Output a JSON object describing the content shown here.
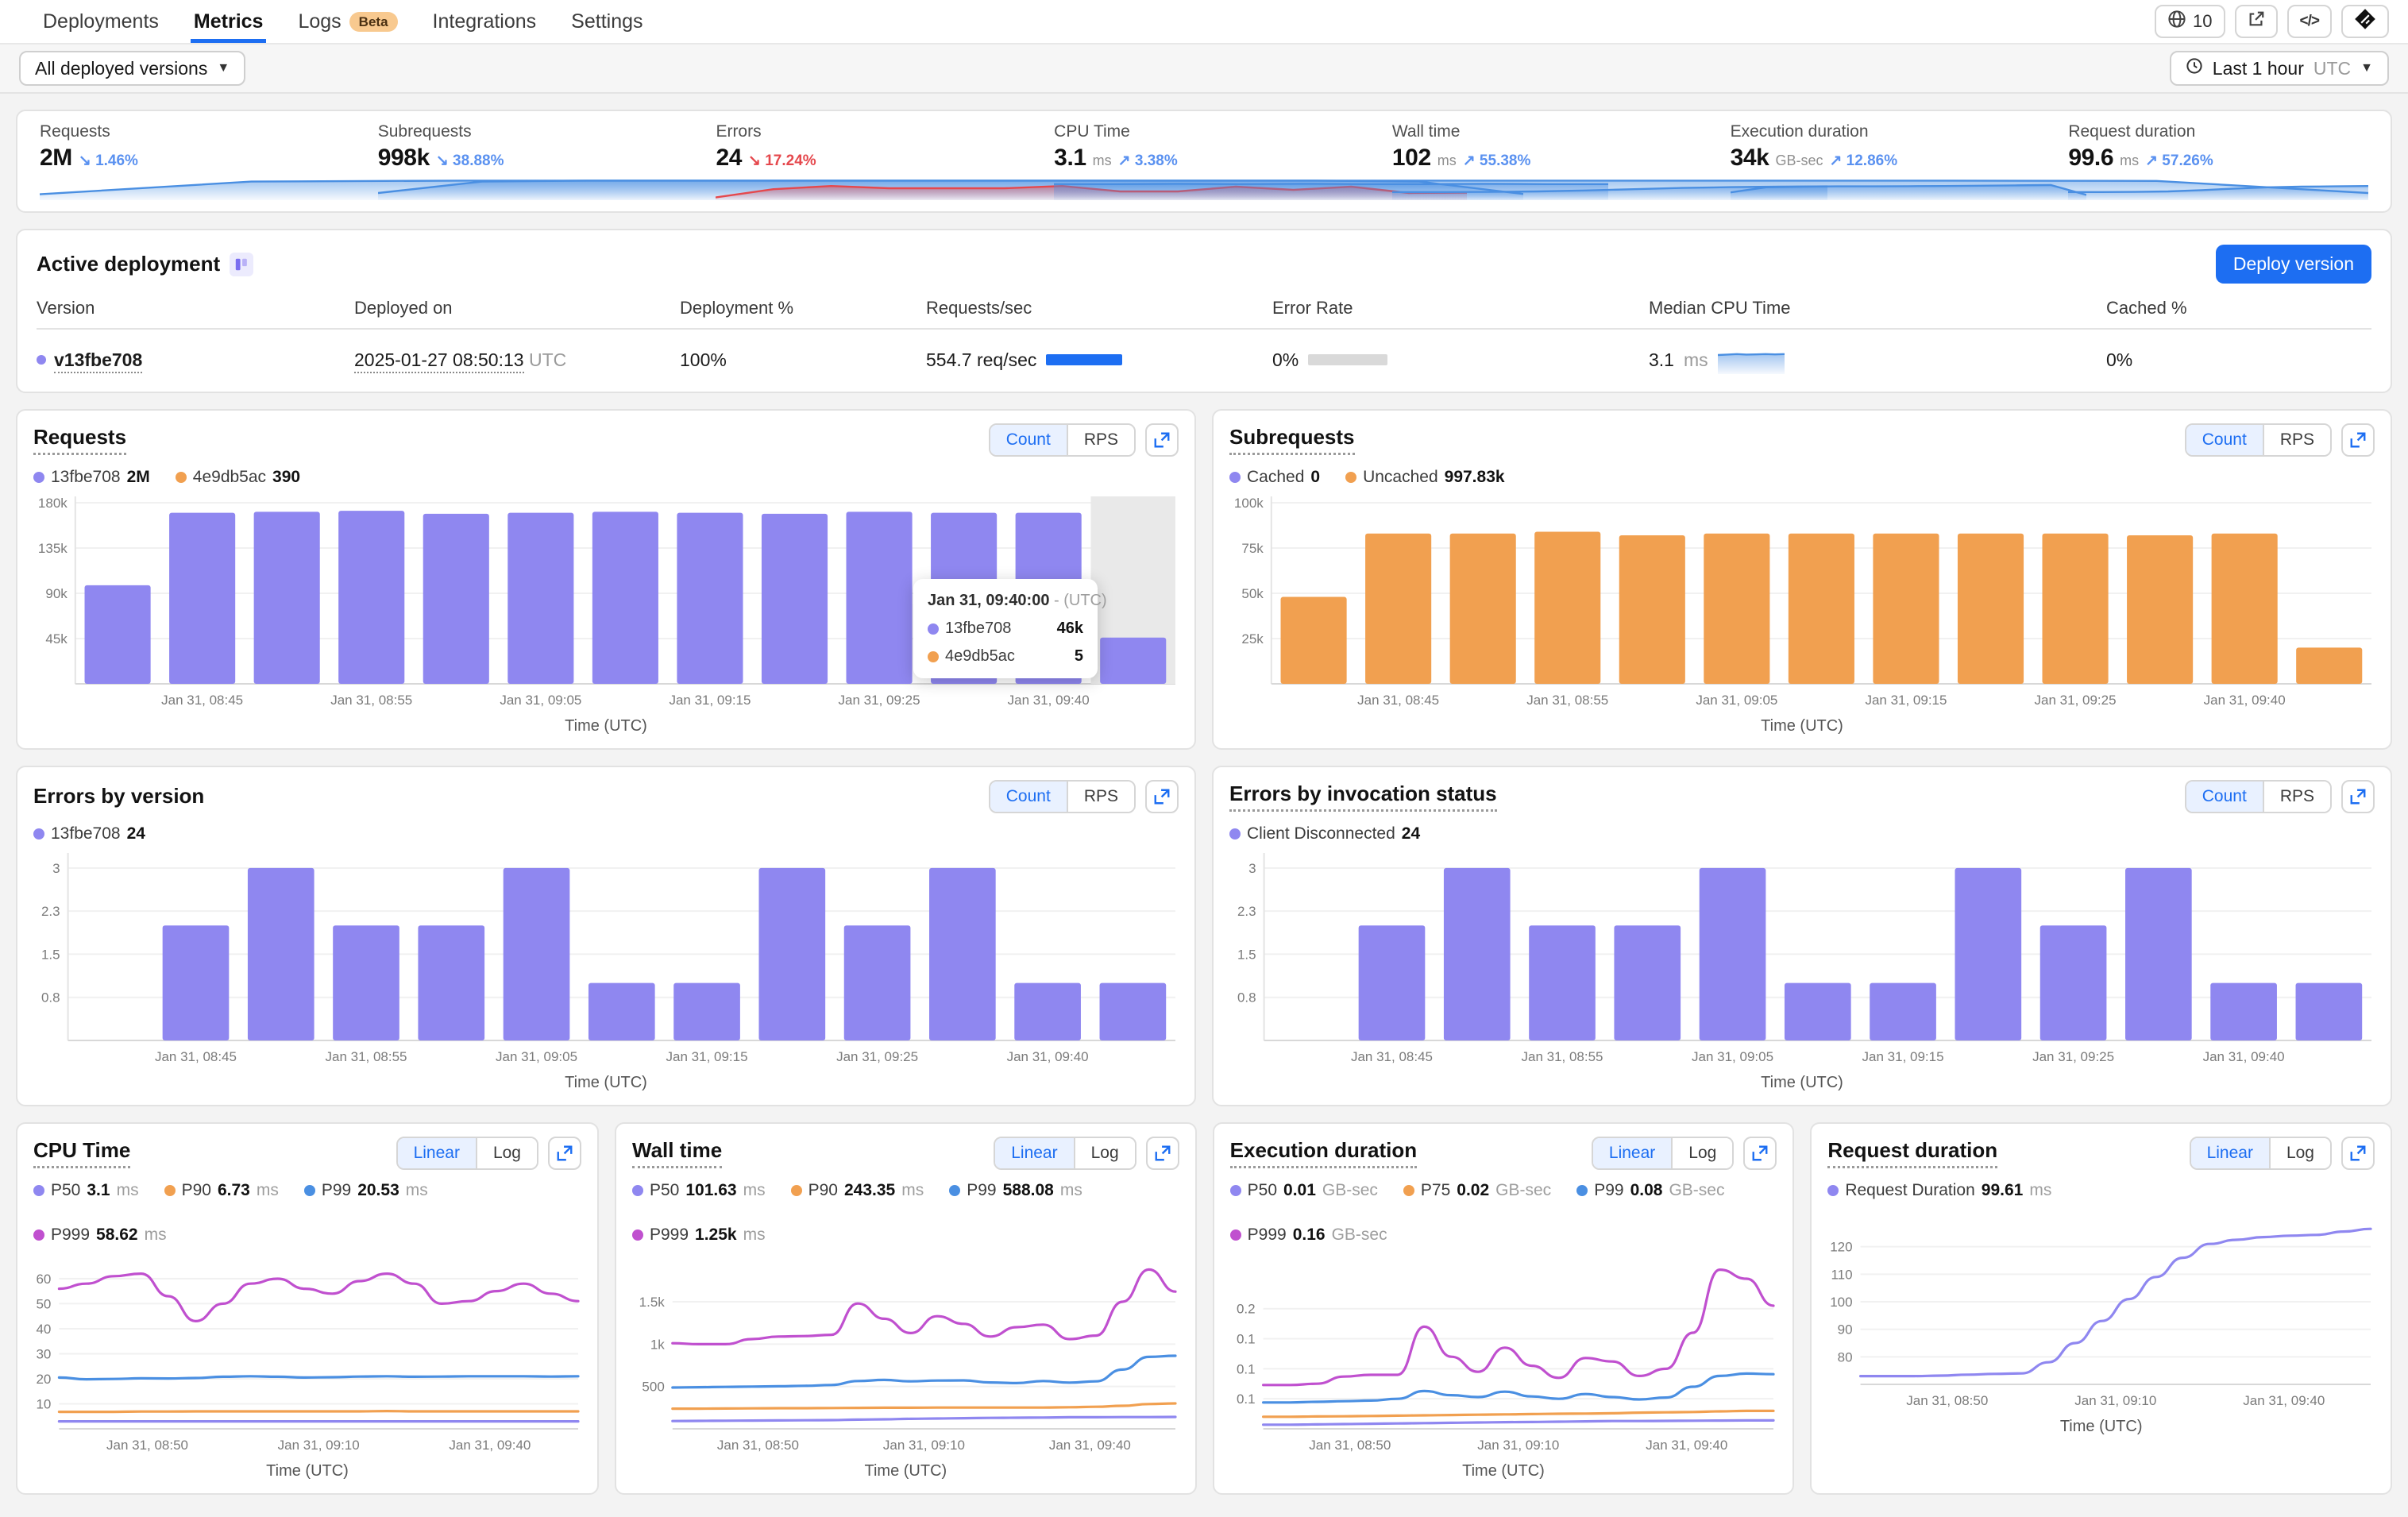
{
  "nav": {
    "tabs": [
      {
        "label": "Deployments",
        "active": false
      },
      {
        "label": "Metrics",
        "active": true
      },
      {
        "label": "Logs",
        "active": false,
        "badge": "Beta"
      },
      {
        "label": "Integrations",
        "active": false
      },
      {
        "label": "Settings",
        "active": false
      }
    ],
    "routes_count": "10"
  },
  "filters": {
    "versions_label": "All deployed versions",
    "time_range": "Last 1 hour",
    "time_zone": "UTC"
  },
  "theme": {
    "accent_blue": "#1d6ef2",
    "purple": "#8f87f0",
    "orange": "#f1a050",
    "line_blue": "#4a8fe2",
    "magenta": "#c050cf",
    "red": "#e5484d"
  },
  "stats": [
    {
      "label": "Requests",
      "value": "2M",
      "unit": "",
      "delta": "1.46%",
      "direction": "down",
      "tone": "blue",
      "spark_color": "#4a8fe2",
      "spark": [
        0.18,
        0.85,
        0.9,
        0.9,
        0.9,
        0.9,
        0.9,
        0.9,
        0.9,
        0.9,
        0.88,
        0.25
      ]
    },
    {
      "label": "Subrequests",
      "value": "998k",
      "unit": "",
      "delta": "38.88%",
      "direction": "down",
      "tone": "blue",
      "spark_color": "#4a8fe2",
      "spark": [
        0.25,
        0.85,
        0.9,
        0.9,
        0.9,
        0.9,
        0.9,
        0.9,
        0.9,
        0.9,
        0.85,
        0.2
      ]
    },
    {
      "label": "Errors",
      "value": "24",
      "unit": "",
      "delta": "17.24%",
      "direction": "down",
      "tone": "red",
      "spark_color": "#e5484d",
      "spark": [
        0.02,
        0.45,
        0.62,
        0.5,
        0.5,
        0.5,
        0.62,
        0.33,
        0.33,
        0.58,
        0.42,
        0.58,
        0.25,
        0.27
      ]
    },
    {
      "label": "CPU Time",
      "value": "3.1",
      "unit": "ms",
      "delta": "3.38%",
      "direction": "up",
      "tone": "blue",
      "spark_color": "#4a8fe2",
      "spark": [
        0.72,
        0.72,
        0.73,
        0.72,
        0.73,
        0.72,
        0.72,
        0.73,
        0.72,
        0.72
      ]
    },
    {
      "label": "Wall time",
      "value": "102",
      "unit": "ms",
      "delta": "55.38%",
      "direction": "up",
      "tone": "blue",
      "spark_color": "#4a8fe2",
      "spark": [
        0.3,
        0.3,
        0.31,
        0.33,
        0.38,
        0.45,
        0.52,
        0.56,
        0.58,
        0.6
      ]
    },
    {
      "label": "Execution duration",
      "value": "34k",
      "unit": "GB-sec",
      "delta": "12.86%",
      "direction": "up",
      "tone": "blue",
      "spark_color": "#4a8fe2",
      "spark": [
        0.28,
        0.55,
        0.58,
        0.6,
        0.6,
        0.61,
        0.62,
        0.63,
        0.65,
        0.67,
        0.15
      ]
    },
    {
      "label": "Request duration",
      "value": "99.6",
      "unit": "ms",
      "delta": "57.26%",
      "direction": "up",
      "tone": "blue",
      "spark_color": "#4a8fe2",
      "spark": [
        0.3,
        0.3,
        0.31,
        0.33,
        0.4,
        0.48,
        0.55,
        0.58,
        0.6,
        0.62
      ]
    }
  ],
  "deployment": {
    "title": "Active deployment",
    "deploy_button": "Deploy version",
    "columns": [
      "Version",
      "Deployed on",
      "Deployment %",
      "Requests/sec",
      "Error Rate",
      "Median CPU Time",
      "Cached %"
    ],
    "row": {
      "version": "v13fbe708",
      "deployed_on": "2025-01-27 08:50:13",
      "deployed_tz": "UTC",
      "deployment_pct": "100%",
      "rps": "554.7 req/sec",
      "error_rate": "0%",
      "median_cpu": "3.1",
      "median_cpu_unit": "ms",
      "cached_pct": "0%",
      "cpu_spark": {
        "points": [
          0.7,
          0.72,
          0.74,
          0.72,
          0.73,
          0.74,
          0.73,
          0.74
        ],
        "color": "#4a8fe2"
      }
    }
  },
  "charts": {
    "requests": {
      "title": "Requests",
      "type": "bar",
      "color": "#8f87f0",
      "toggle": [
        "Count",
        "RPS"
      ],
      "selected": "Count",
      "legend": [
        {
          "label": "13fbe708",
          "value": "2M",
          "color": "#8f87f0"
        },
        {
          "label": "4e9db5ac",
          "value": "390",
          "color": "#f1a050"
        }
      ],
      "values": [
        98,
        170,
        171,
        172,
        169,
        170,
        171,
        170,
        169,
        171,
        170,
        170,
        46
      ],
      "ymax": 180,
      "yticks": [
        {
          "label": "180k",
          "v": 180
        },
        {
          "label": "135k",
          "v": 135
        },
        {
          "label": "90k",
          "v": 90
        },
        {
          "label": "45k",
          "v": 45
        }
      ],
      "xlabels": [
        "Jan 31, 08:45",
        "Jan 31, 08:55",
        "Jan 31, 09:05",
        "Jan 31, 09:15",
        "Jan 31, 09:25",
        "Jan 31, 09:40"
      ],
      "label_slots": [
        1,
        3,
        5,
        7,
        9,
        11
      ],
      "xlabel": "Time (UTC)",
      "hover_slot": 12,
      "tooltip": {
        "time": "Jan 31, 09:40:00",
        "suffix": "- (UTC)",
        "rows": [
          {
            "label": "13fbe708",
            "value": "46k",
            "color": "#8f87f0"
          },
          {
            "label": "4e9db5ac",
            "value": "5",
            "color": "#f1a050"
          }
        ]
      }
    },
    "subrequests": {
      "title": "Subrequests",
      "type": "bar",
      "color": "#f1a050",
      "toggle": [
        "Count",
        "RPS"
      ],
      "selected": "Count",
      "legend": [
        {
          "label": "Cached",
          "value": "0",
          "color": "#8f87f0"
        },
        {
          "label": "Uncached",
          "value": "997.83k",
          "color": "#f1a050"
        }
      ],
      "values": [
        48,
        83,
        83,
        84,
        82,
        83,
        83,
        83,
        83,
        83,
        82,
        83,
        20
      ],
      "ymax": 100,
      "yticks": [
        {
          "label": "100k",
          "v": 100
        },
        {
          "label": "75k",
          "v": 75
        },
        {
          "label": "50k",
          "v": 50
        },
        {
          "label": "25k",
          "v": 25
        }
      ],
      "xlabels": [
        "Jan 31, 08:45",
        "Jan 31, 08:55",
        "Jan 31, 09:05",
        "Jan 31, 09:15",
        "Jan 31, 09:25",
        "Jan 31, 09:40"
      ],
      "label_slots": [
        1,
        3,
        5,
        7,
        9,
        11
      ],
      "xlabel": "Time (UTC)"
    },
    "errors_version": {
      "title": "Errors by version",
      "type": "bar",
      "color": "#8f87f0",
      "toggle": [
        "Count",
        "RPS"
      ],
      "selected": "Count",
      "legend": [
        {
          "label": "13fbe708",
          "value": "24",
          "color": "#8f87f0"
        }
      ],
      "values": [
        0,
        2,
        3,
        2,
        2,
        3,
        1,
        1,
        3,
        2,
        3,
        1,
        1
      ],
      "ymax": 3.15,
      "yticks": [
        {
          "label": "3",
          "v": 3
        },
        {
          "label": "2.3",
          "v": 2.25
        },
        {
          "label": "1.5",
          "v": 1.5
        },
        {
          "label": "0.8",
          "v": 0.75
        }
      ],
      "xlabels": [
        "Jan 31, 08:45",
        "Jan 31, 08:55",
        "Jan 31, 09:05",
        "Jan 31, 09:15",
        "Jan 31, 09:25",
        "Jan 31, 09:40"
      ],
      "label_slots": [
        1,
        3,
        5,
        7,
        9,
        11
      ],
      "xlabel": "Time (UTC)"
    },
    "errors_status": {
      "title": "Errors by invocation status",
      "type": "bar",
      "color": "#8f87f0",
      "toggle": [
        "Count",
        "RPS"
      ],
      "selected": "Count",
      "legend": [
        {
          "label": "Client Disconnected",
          "value": "24",
          "color": "#8f87f0"
        }
      ],
      "values": [
        0,
        2,
        3,
        2,
        2,
        3,
        1,
        1,
        3,
        2,
        3,
        1,
        1
      ],
      "ymax": 3.15,
      "yticks": [
        {
          "label": "3",
          "v": 3
        },
        {
          "label": "2.3",
          "v": 2.25
        },
        {
          "label": "1.5",
          "v": 1.5
        },
        {
          "label": "0.8",
          "v": 0.75
        }
      ],
      "xlabels": [
        "Jan 31, 08:45",
        "Jan 31, 08:55",
        "Jan 31, 09:05",
        "Jan 31, 09:15",
        "Jan 31, 09:25",
        "Jan 31, 09:40"
      ],
      "label_slots": [
        1,
        3,
        5,
        7,
        9,
        11
      ],
      "xlabel": "Time (UTC)"
    },
    "cpu": {
      "title": "CPU Time",
      "type": "line",
      "toggle": [
        "Linear",
        "Log"
      ],
      "selected": "Linear",
      "legend": [
        {
          "label": "P50",
          "value": "3.1",
          "unit": "ms",
          "color": "#8f87f0"
        },
        {
          "label": "P90",
          "value": "6.73",
          "unit": "ms",
          "color": "#f1a050"
        },
        {
          "label": "P99",
          "value": "20.53",
          "unit": "ms",
          "color": "#4a8fe2"
        },
        {
          "label": "P999",
          "value": "58.62",
          "unit": "ms",
          "color": "#c050cf"
        }
      ],
      "ymin": 0,
      "ymax": 66,
      "yticks": [
        {
          "label": "60",
          "v": 60
        },
        {
          "label": "50",
          "v": 50
        },
        {
          "label": "40",
          "v": 40
        },
        {
          "label": "30",
          "v": 30
        },
        {
          "label": "20",
          "v": 20
        },
        {
          "label": "10",
          "v": 10
        }
      ],
      "xlabels": [
        "Jan 31, 08:50",
        "Jan 31, 09:10",
        "Jan 31, 09:40"
      ],
      "xfracs": [
        0.17,
        0.5,
        0.83
      ],
      "xlabel": "Time (UTC)",
      "series": [
        {
          "name": "P50",
          "color": "#8f87f0",
          "points": [
            3,
            3,
            3,
            3,
            3,
            3,
            3,
            3,
            3,
            3,
            3,
            3,
            3,
            3,
            3,
            3,
            3,
            3,
            3,
            3
          ]
        },
        {
          "name": "P90",
          "color": "#f1a050",
          "points": [
            6.8,
            6.8,
            6.8,
            6.9,
            6.9,
            7,
            7,
            7,
            7,
            7,
            7,
            7,
            7.1,
            7,
            7,
            7,
            7,
            7,
            7,
            7
          ]
        },
        {
          "name": "P99",
          "color": "#4a8fe2",
          "points": [
            20.5,
            19.8,
            19.9,
            20.2,
            20.1,
            20.3,
            20.8,
            21,
            20.8,
            20.5,
            20.6,
            20.9,
            21,
            20.8,
            20.9,
            21,
            21,
            21,
            20.9,
            21
          ]
        },
        {
          "name": "P999",
          "color": "#c050cf",
          "points": [
            56,
            58,
            61,
            62,
            53,
            43,
            50,
            58,
            60,
            56,
            54,
            59,
            62,
            58,
            50,
            51,
            55,
            58,
            54,
            51
          ]
        }
      ]
    },
    "wall": {
      "title": "Wall time",
      "type": "line",
      "toggle": [
        "Linear",
        "Log"
      ],
      "selected": "Linear",
      "legend": [
        {
          "label": "P50",
          "value": "101.63",
          "unit": "ms",
          "color": "#8f87f0"
        },
        {
          "label": "P90",
          "value": "243.35",
          "unit": "ms",
          "color": "#f1a050"
        },
        {
          "label": "P99",
          "value": "588.08",
          "unit": "ms",
          "color": "#4a8fe2"
        },
        {
          "label": "P999",
          "value": "1.25k",
          "unit": "ms",
          "color": "#c050cf"
        }
      ],
      "ymin": 0,
      "ymax": 1950,
      "yticks": [
        {
          "label": "1.5k",
          "v": 1500
        },
        {
          "label": "1k",
          "v": 1000
        },
        {
          "label": "500",
          "v": 500
        }
      ],
      "xlabels": [
        "Jan 31, 08:50",
        "Jan 31, 09:10",
        "Jan 31, 09:40"
      ],
      "xfracs": [
        0.17,
        0.5,
        0.83
      ],
      "xlabel": "Time (UTC)",
      "series": [
        {
          "name": "P50",
          "color": "#8f87f0",
          "points": [
            92,
            93,
            95,
            97,
            99,
            101,
            104,
            108,
            113,
            118,
            122,
            126,
            129,
            132,
            134,
            136,
            137,
            138,
            139,
            140
          ]
        },
        {
          "name": "P90",
          "color": "#f1a050",
          "points": [
            238,
            239,
            240,
            242,
            243,
            244,
            246,
            248,
            250,
            250,
            251,
            252,
            252,
            251,
            252,
            255,
            260,
            272,
            292,
            300
          ]
        },
        {
          "name": "P99",
          "color": "#4a8fe2",
          "points": [
            488,
            492,
            495,
            498,
            502,
            508,
            518,
            565,
            578,
            560,
            570,
            572,
            548,
            540,
            565,
            545,
            560,
            700,
            850,
            862
          ]
        },
        {
          "name": "P999",
          "color": "#c050cf",
          "points": [
            1010,
            1000,
            1000,
            1060,
            1090,
            1095,
            1110,
            1480,
            1300,
            1130,
            1330,
            1240,
            1090,
            1200,
            1230,
            1060,
            1100,
            1500,
            1880,
            1620
          ]
        }
      ]
    },
    "exec": {
      "title": "Execution duration",
      "type": "line",
      "toggle": [
        "Linear",
        "Log"
      ],
      "selected": "Linear",
      "legend": [
        {
          "label": "P50",
          "value": "0.01",
          "unit": "GB-sec",
          "color": "#8f87f0"
        },
        {
          "label": "P75",
          "value": "0.02",
          "unit": "GB-sec",
          "color": "#f1a050"
        },
        {
          "label": "P99",
          "value": "0.08",
          "unit": "GB-sec",
          "color": "#4a8fe2"
        },
        {
          "label": "P999",
          "value": "0.16",
          "unit": "GB-sec",
          "color": "#c050cf"
        }
      ],
      "ymin": 0,
      "ymax": 0.275,
      "yticks": [
        {
          "label": "0.2",
          "v": 0.2
        },
        {
          "label": "0.1",
          "v": 0.15
        },
        {
          "label": "0.1",
          "v": 0.1
        },
        {
          "label": "0.1",
          "v": 0.05
        }
      ],
      "xlabels": [
        "Jan 31, 08:50",
        "Jan 31, 09:10",
        "Jan 31, 09:40"
      ],
      "xfracs": [
        0.17,
        0.5,
        0.83
      ],
      "xlabel": "Time (UTC)",
      "series": [
        {
          "name": "P50",
          "color": "#8f87f0",
          "points": [
            0.007,
            0.007,
            0.0075,
            0.008,
            0.0085,
            0.009,
            0.0095,
            0.01,
            0.0105,
            0.011,
            0.0115,
            0.012,
            0.0125,
            0.013,
            0.013,
            0.0133,
            0.0135,
            0.0138,
            0.014,
            0.014
          ]
        },
        {
          "name": "P75",
          "color": "#f1a050",
          "points": [
            0.02,
            0.02,
            0.0205,
            0.021,
            0.0215,
            0.022,
            0.0225,
            0.023,
            0.0235,
            0.024,
            0.0245,
            0.025,
            0.0255,
            0.026,
            0.027,
            0.0275,
            0.028,
            0.029,
            0.03,
            0.03
          ]
        },
        {
          "name": "P99",
          "color": "#4a8fe2",
          "points": [
            0.044,
            0.044,
            0.045,
            0.046,
            0.047,
            0.05,
            0.063,
            0.056,
            0.053,
            0.062,
            0.054,
            0.05,
            0.058,
            0.053,
            0.049,
            0.052,
            0.07,
            0.088,
            0.092,
            0.091
          ]
        },
        {
          "name": "P999",
          "color": "#c050cf",
          "points": [
            0.073,
            0.073,
            0.075,
            0.087,
            0.09,
            0.09,
            0.17,
            0.12,
            0.095,
            0.135,
            0.105,
            0.085,
            0.118,
            0.112,
            0.088,
            0.1,
            0.16,
            0.265,
            0.25,
            0.205
          ]
        }
      ]
    },
    "reqdur": {
      "title": "Request duration",
      "type": "line",
      "toggle": [
        "Linear",
        "Log"
      ],
      "selected": "Linear",
      "legend": [
        {
          "label": "Request Duration",
          "value": "99.61",
          "unit": "ms",
          "color": "#8f87f0"
        }
      ],
      "ymin": 70,
      "ymax": 130,
      "yticks": [
        {
          "label": "120",
          "v": 120
        },
        {
          "label": "110",
          "v": 110
        },
        {
          "label": "100",
          "v": 100
        },
        {
          "label": "90",
          "v": 90
        },
        {
          "label": "80",
          "v": 80
        }
      ],
      "xlabels": [
        "Jan 31, 08:50",
        "Jan 31, 09:10",
        "Jan 31, 09:40"
      ],
      "xfracs": [
        0.17,
        0.5,
        0.83
      ],
      "xlabel": "Time (UTC)",
      "series": [
        {
          "name": "Request Duration",
          "color": "#8f87f0",
          "points": [
            73,
            73,
            73,
            73.2,
            73.5,
            73.8,
            74,
            78,
            85,
            93,
            101,
            109,
            116,
            121,
            122.5,
            123.5,
            124,
            124.3,
            125.5,
            126.5
          ]
        }
      ]
    }
  }
}
